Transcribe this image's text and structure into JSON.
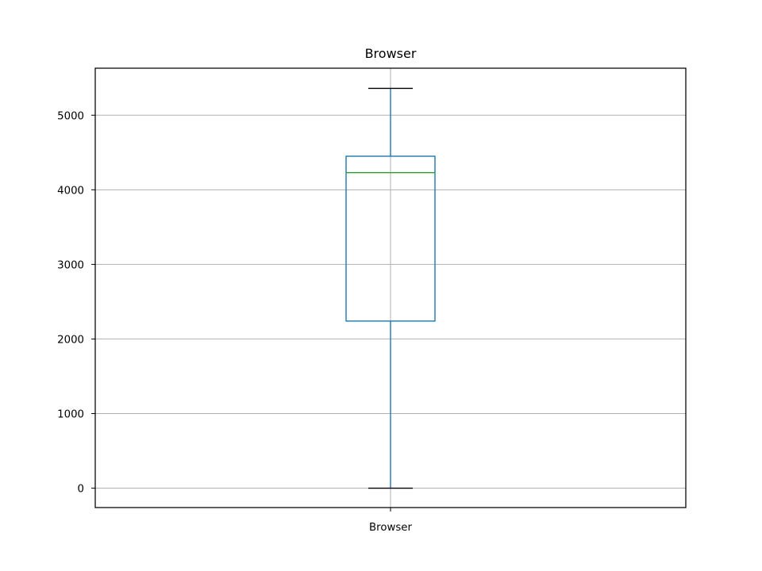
{
  "chart_data": {
    "type": "box",
    "title": "Browser",
    "categories": [
      "Browser"
    ],
    "boxes": [
      {
        "name": "Browser",
        "whisker_low": 0,
        "q1": 2240,
        "median": 4230,
        "q3": 4450,
        "whisker_high": 5360
      }
    ],
    "ylim": [
      -260,
      5630
    ],
    "yticks": [
      0,
      1000,
      2000,
      3000,
      4000,
      5000
    ],
    "ytick_labels": [
      "0",
      "1000",
      "2000",
      "3000",
      "4000",
      "5000"
    ],
    "grid": true,
    "colors": {
      "box": "#1f77b4",
      "median": "#2ca02c",
      "whisker_cap": "#000000",
      "grid": "#b0b0b0",
      "frame": "#000000"
    }
  }
}
